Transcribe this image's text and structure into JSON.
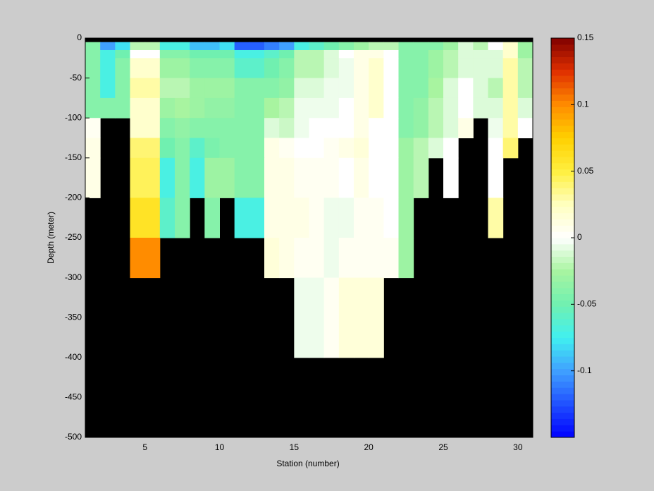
{
  "chart_data": {
    "type": "heatmap",
    "xlabel": "Station (number)",
    "ylabel": "Depth (meter)",
    "xlim": [
      1,
      31
    ],
    "ylim": [
      -500,
      0
    ],
    "xticks": [
      5,
      10,
      15,
      20,
      25,
      30
    ],
    "yticks": [
      0,
      -50,
      -100,
      -150,
      -200,
      -250,
      -300,
      -350,
      -400,
      -450,
      -500
    ],
    "x": [
      1,
      2,
      3,
      4,
      5,
      6,
      7,
      8,
      9,
      10,
      11,
      12,
      13,
      14,
      15,
      16,
      17,
      18,
      19,
      20,
      21,
      22,
      23,
      24,
      25,
      26,
      27,
      28,
      29,
      30,
      31
    ],
    "y": [
      0,
      -5,
      -15,
      -25,
      -50,
      -75,
      -100,
      -125,
      -150,
      -200,
      -250,
      -300,
      -400,
      -500
    ],
    "values": [
      [
        null,
        null,
        null,
        null,
        null,
        null,
        null,
        null,
        null,
        null,
        null,
        null,
        null,
        null,
        null,
        null,
        null,
        null,
        null,
        null,
        null,
        null,
        null,
        null,
        null,
        null,
        null,
        null,
        null,
        null
      ],
      [
        -0.04,
        -0.1,
        -0.08,
        -0.02,
        -0.02,
        -0.07,
        -0.07,
        -0.09,
        -0.09,
        -0.08,
        -0.12,
        -0.12,
        -0.11,
        -0.1,
        -0.07,
        -0.06,
        -0.05,
        -0.04,
        -0.03,
        -0.02,
        -0.02,
        -0.04,
        -0.04,
        -0.04,
        -0.03,
        -0.01,
        -0.02,
        0,
        0.02,
        -0.03
      ],
      [
        -0.04,
        -0.07,
        -0.05,
        0,
        0,
        -0.04,
        -0.04,
        -0.05,
        -0.05,
        -0.05,
        -0.07,
        -0.07,
        -0.06,
        -0.05,
        -0.02,
        -0.02,
        -0.01,
        0,
        0.01,
        0.01,
        0,
        -0.04,
        -0.04,
        -0.03,
        -0.02,
        -0.01,
        -0.01,
        -0.01,
        0.02,
        -0.03
      ],
      [
        -0.04,
        -0.07,
        -0.04,
        0.02,
        0.02,
        -0.03,
        -0.03,
        -0.04,
        -0.04,
        -0.04,
        -0.06,
        -0.06,
        -0.05,
        -0.04,
        -0.02,
        -0.02,
        -0.01,
        -0.005,
        0.01,
        0.02,
        0,
        -0.04,
        -0.04,
        -0.03,
        -0.02,
        -0.01,
        -0.01,
        -0.01,
        0.03,
        -0.02
      ],
      [
        -0.04,
        -0.07,
        -0.04,
        0.03,
        0.03,
        -0.02,
        -0.02,
        -0.03,
        -0.03,
        -0.03,
        -0.04,
        -0.04,
        -0.04,
        -0.035,
        -0.01,
        -0.01,
        -0.005,
        -0.005,
        0.01,
        0.02,
        0,
        -0.04,
        -0.04,
        -0.025,
        -0.01,
        0,
        -0.01,
        -0.02,
        0.03,
        -0.02
      ],
      [
        -0.04,
        -0.04,
        -0.04,
        0.02,
        0.02,
        -0.03,
        -0.025,
        -0.03,
        -0.035,
        -0.035,
        -0.04,
        -0.04,
        -0.025,
        -0.02,
        -0.005,
        -0.005,
        -0.005,
        0,
        0.01,
        0.02,
        0,
        -0.04,
        -0.035,
        -0.02,
        -0.01,
        0,
        -0.01,
        -0.01,
        0.03,
        -0.01
      ],
      [
        0.005,
        null,
        null,
        0.02,
        0.02,
        -0.04,
        -0.035,
        -0.04,
        -0.04,
        -0.04,
        -0.04,
        -0.04,
        -0.01,
        -0.015,
        -0.005,
        0,
        0,
        0,
        0.01,
        0,
        0,
        -0.04,
        -0.035,
        -0.02,
        -0.01,
        0.01,
        null,
        -0.005,
        0.03,
        0
      ],
      [
        0.01,
        null,
        null,
        0.04,
        0.04,
        -0.05,
        -0.04,
        -0.06,
        -0.045,
        -0.04,
        -0.04,
        -0.04,
        0.01,
        0.005,
        0,
        0,
        0.005,
        0.01,
        0.015,
        0,
        0,
        -0.03,
        -0.02,
        -0.01,
        0,
        null,
        null,
        0,
        0.04,
        null
      ],
      [
        0.01,
        null,
        null,
        0.045,
        0.045,
        -0.07,
        -0.04,
        -0.07,
        -0.03,
        -0.03,
        -0.04,
        -0.04,
        0.01,
        0.01,
        0.005,
        0.005,
        0.005,
        0,
        0.01,
        0,
        0,
        -0.03,
        -0.02,
        null,
        0,
        null,
        null,
        0,
        null,
        null
      ],
      [
        null,
        null,
        null,
        0.06,
        0.06,
        -0.06,
        -0.04,
        null,
        -0.04,
        null,
        -0.07,
        -0.07,
        0.01,
        0.01,
        0.01,
        0.005,
        -0.005,
        -0.005,
        0.005,
        0.005,
        0,
        -0.03,
        null,
        null,
        null,
        null,
        null,
        0.03,
        null,
        null
      ],
      [
        null,
        null,
        null,
        0.1,
        0.1,
        null,
        null,
        null,
        null,
        null,
        null,
        null,
        0.015,
        0.01,
        0.005,
        0.005,
        -0.005,
        0.005,
        0.005,
        0.005,
        0.005,
        -0.03,
        null,
        null,
        null,
        null,
        null,
        null,
        null,
        null
      ],
      [
        null,
        null,
        null,
        null,
        null,
        null,
        null,
        null,
        null,
        null,
        null,
        null,
        null,
        null,
        -0.005,
        -0.005,
        0.005,
        0.015,
        0.015,
        0.015,
        null,
        null,
        null,
        null,
        null,
        null,
        null,
        null,
        null,
        null
      ],
      [
        null,
        null,
        null,
        null,
        null,
        null,
        null,
        null,
        null,
        null,
        null,
        null,
        null,
        null,
        null,
        null,
        null,
        null,
        null,
        null,
        null,
        null,
        null,
        null,
        null,
        null,
        null,
        null,
        null,
        null
      ]
    ],
    "clim": [
      -0.15,
      0.15
    ],
    "cticks": [
      -0.1,
      -0.05,
      0,
      0.05,
      0.1,
      0.15
    ],
    "colormap": [
      "#0000ff",
      "#2050ff",
      "#40a0ff",
      "#40f0f0",
      "#70f0b0",
      "#a8f4a0",
      "#ffffff",
      "#ffffc0",
      "#ffef40",
      "#ffd000",
      "#ff8c00",
      "#e03000",
      "#800000"
    ],
    "missing_color": "#000000"
  }
}
